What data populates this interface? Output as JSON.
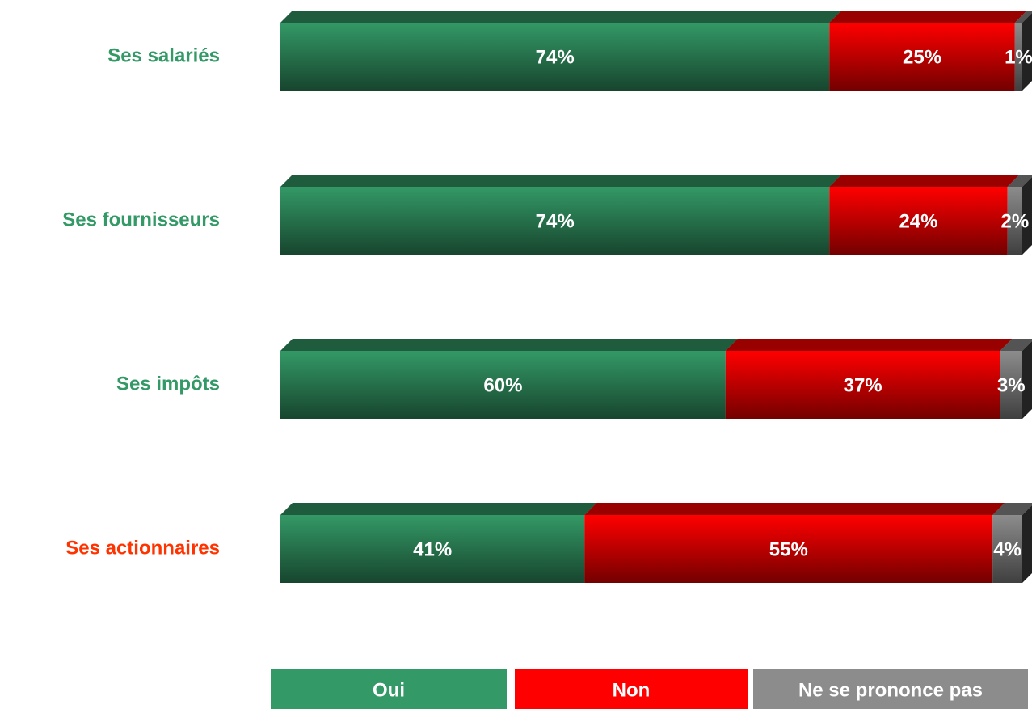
{
  "chart_data": {
    "type": "stacked-bar-horizontal",
    "categories": [
      "Ses salariés",
      "Ses fournisseurs",
      "Ses impôts",
      "Ses actionnaires"
    ],
    "label_colors": [
      "#339966",
      "#339966",
      "#339966",
      "#ff3300"
    ],
    "series": [
      {
        "name": "Oui",
        "color": "#339966",
        "values": [
          74,
          74,
          60,
          41
        ],
        "value_labels": [
          "74%",
          "74%",
          "60%",
          "41%"
        ]
      },
      {
        "name": "Non",
        "color": "#ff0000",
        "values": [
          25,
          24,
          37,
          55
        ],
        "value_labels": [
          "25%",
          "24%",
          "37%",
          "55%"
        ]
      },
      {
        "name": "Ne se prononce pas",
        "color": "#8c8c8c",
        "values": [
          1,
          2,
          3,
          4
        ],
        "value_labels": [
          "1%",
          "2%",
          "3%",
          "4%"
        ]
      }
    ],
    "legend": "bottom"
  }
}
